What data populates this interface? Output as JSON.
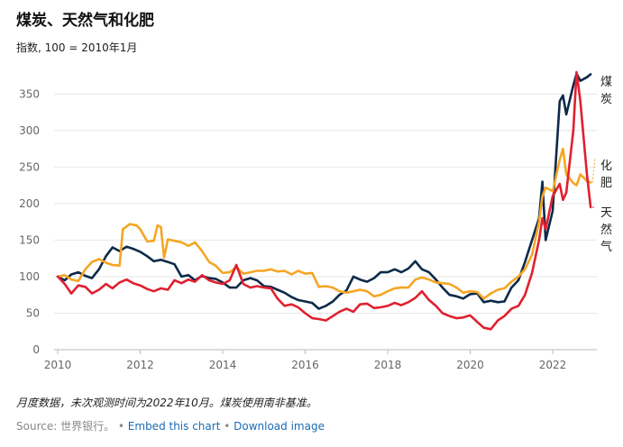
{
  "chart_data": {
    "type": "line",
    "title": "煤炭、天然气和化肥",
    "subtitle": "指数, 100 = 2010年1月",
    "ylim": [
      0,
      380
    ],
    "xlim": [
      2010,
      2022.92
    ],
    "yticks": [
      0,
      50,
      100,
      150,
      200,
      250,
      300,
      350
    ],
    "xticks": [
      2010,
      2012,
      2014,
      2016,
      2018,
      2020,
      2022
    ],
    "grid": true,
    "series": [
      {
        "name": "煤炭",
        "label_lines": [
          "煤",
          "炭"
        ],
        "color": "#0d2a4a",
        "points": [
          [
            2010.0,
            100
          ],
          [
            2010.17,
            95
          ],
          [
            2010.33,
            103
          ],
          [
            2010.5,
            106
          ],
          [
            2010.67,
            101
          ],
          [
            2010.83,
            98
          ],
          [
            2011.0,
            110
          ],
          [
            2011.17,
            128
          ],
          [
            2011.33,
            140
          ],
          [
            2011.5,
            135
          ],
          [
            2011.67,
            141
          ],
          [
            2011.83,
            138
          ],
          [
            2012.0,
            134
          ],
          [
            2012.17,
            128
          ],
          [
            2012.33,
            121
          ],
          [
            2012.5,
            123
          ],
          [
            2012.67,
            120
          ],
          [
            2012.83,
            117
          ],
          [
            2013.0,
            100
          ],
          [
            2013.17,
            102
          ],
          [
            2013.33,
            95
          ],
          [
            2013.5,
            101
          ],
          [
            2013.67,
            98
          ],
          [
            2013.83,
            97
          ],
          [
            2014.0,
            92
          ],
          [
            2014.17,
            85
          ],
          [
            2014.33,
            85
          ],
          [
            2014.5,
            95
          ],
          [
            2014.67,
            98
          ],
          [
            2014.83,
            95
          ],
          [
            2015.0,
            87
          ],
          [
            2015.17,
            86
          ],
          [
            2015.33,
            82
          ],
          [
            2015.5,
            78
          ],
          [
            2015.67,
            72
          ],
          [
            2015.83,
            68
          ],
          [
            2016.0,
            66
          ],
          [
            2016.17,
            64
          ],
          [
            2016.33,
            56
          ],
          [
            2016.5,
            60
          ],
          [
            2016.67,
            66
          ],
          [
            2016.83,
            75
          ],
          [
            2017.0,
            81
          ],
          [
            2017.17,
            100
          ],
          [
            2017.33,
            96
          ],
          [
            2017.5,
            93
          ],
          [
            2017.67,
            98
          ],
          [
            2017.83,
            106
          ],
          [
            2018.0,
            106
          ],
          [
            2018.17,
            110
          ],
          [
            2018.33,
            106
          ],
          [
            2018.5,
            111
          ],
          [
            2018.67,
            121
          ],
          [
            2018.83,
            110
          ],
          [
            2019.0,
            106
          ],
          [
            2019.17,
            96
          ],
          [
            2019.33,
            85
          ],
          [
            2019.5,
            75
          ],
          [
            2019.67,
            73
          ],
          [
            2019.83,
            70
          ],
          [
            2020.0,
            76
          ],
          [
            2020.17,
            77
          ],
          [
            2020.33,
            65
          ],
          [
            2020.5,
            67
          ],
          [
            2020.67,
            65
          ],
          [
            2020.83,
            66
          ],
          [
            2021.0,
            85
          ],
          [
            2021.17,
            95
          ],
          [
            2021.33,
            120
          ],
          [
            2021.5,
            150
          ],
          [
            2021.67,
            180
          ],
          [
            2021.75,
            230
          ],
          [
            2021.83,
            150
          ],
          [
            2022.0,
            190
          ],
          [
            2022.17,
            340
          ],
          [
            2022.25,
            348
          ],
          [
            2022.33,
            322
          ],
          [
            2022.5,
            362
          ],
          [
            2022.58,
            378
          ],
          [
            2022.67,
            368
          ],
          [
            2022.83,
            373
          ],
          [
            2022.92,
            377
          ]
        ]
      },
      {
        "name": "化肥",
        "label_lines": [
          "化",
          "肥"
        ],
        "color": "#f5a623",
        "points": [
          [
            2010.0,
            100
          ],
          [
            2010.17,
            102
          ],
          [
            2010.33,
            96
          ],
          [
            2010.5,
            94
          ],
          [
            2010.67,
            110
          ],
          [
            2010.83,
            120
          ],
          [
            2011.0,
            124
          ],
          [
            2011.17,
            119
          ],
          [
            2011.33,
            116
          ],
          [
            2011.5,
            115
          ],
          [
            2011.58,
            165
          ],
          [
            2011.75,
            172
          ],
          [
            2011.92,
            170
          ],
          [
            2012.0,
            165
          ],
          [
            2012.17,
            148
          ],
          [
            2012.33,
            149
          ],
          [
            2012.42,
            170
          ],
          [
            2012.5,
            168
          ],
          [
            2012.58,
            126
          ],
          [
            2012.67,
            151
          ],
          [
            2012.83,
            149
          ],
          [
            2013.0,
            147
          ],
          [
            2013.17,
            142
          ],
          [
            2013.33,
            147
          ],
          [
            2013.5,
            135
          ],
          [
            2013.67,
            120
          ],
          [
            2013.83,
            115
          ],
          [
            2014.0,
            105
          ],
          [
            2014.17,
            106
          ],
          [
            2014.33,
            113
          ],
          [
            2014.5,
            104
          ],
          [
            2014.67,
            106
          ],
          [
            2014.83,
            108
          ],
          [
            2015.0,
            108
          ],
          [
            2015.17,
            110
          ],
          [
            2015.33,
            107
          ],
          [
            2015.5,
            108
          ],
          [
            2015.67,
            103
          ],
          [
            2015.83,
            108
          ],
          [
            2016.0,
            104
          ],
          [
            2016.17,
            105
          ],
          [
            2016.33,
            86
          ],
          [
            2016.5,
            87
          ],
          [
            2016.67,
            85
          ],
          [
            2016.83,
            80
          ],
          [
            2017.0,
            78
          ],
          [
            2017.17,
            80
          ],
          [
            2017.33,
            82
          ],
          [
            2017.5,
            80
          ],
          [
            2017.67,
            73
          ],
          [
            2017.83,
            75
          ],
          [
            2018.0,
            80
          ],
          [
            2018.17,
            84
          ],
          [
            2018.33,
            85
          ],
          [
            2018.5,
            85
          ],
          [
            2018.67,
            96
          ],
          [
            2018.83,
            99
          ],
          [
            2019.0,
            96
          ],
          [
            2019.17,
            92
          ],
          [
            2019.33,
            91
          ],
          [
            2019.5,
            90
          ],
          [
            2019.67,
            85
          ],
          [
            2019.83,
            78
          ],
          [
            2020.0,
            80
          ],
          [
            2020.17,
            79
          ],
          [
            2020.33,
            70
          ],
          [
            2020.5,
            77
          ],
          [
            2020.67,
            82
          ],
          [
            2020.83,
            84
          ],
          [
            2021.0,
            93
          ],
          [
            2021.17,
            100
          ],
          [
            2021.33,
            110
          ],
          [
            2021.5,
            130
          ],
          [
            2021.67,
            175
          ],
          [
            2021.75,
            210
          ],
          [
            2021.83,
            222
          ],
          [
            2022.0,
            217
          ],
          [
            2022.17,
            260
          ],
          [
            2022.25,
            275
          ],
          [
            2022.33,
            240
          ],
          [
            2022.5,
            228
          ],
          [
            2022.58,
            225
          ],
          [
            2022.67,
            240
          ],
          [
            2022.83,
            231
          ],
          [
            2022.92,
            229
          ]
        ]
      },
      {
        "name": "天然气",
        "label_lines": [
          "天",
          "然",
          "气"
        ],
        "color": "#e0202f",
        "points": [
          [
            2010.0,
            100
          ],
          [
            2010.17,
            90
          ],
          [
            2010.33,
            77
          ],
          [
            2010.5,
            88
          ],
          [
            2010.67,
            86
          ],
          [
            2010.83,
            77
          ],
          [
            2011.0,
            82
          ],
          [
            2011.17,
            90
          ],
          [
            2011.33,
            84
          ],
          [
            2011.5,
            92
          ],
          [
            2011.67,
            96
          ],
          [
            2011.83,
            91
          ],
          [
            2012.0,
            88
          ],
          [
            2012.17,
            83
          ],
          [
            2012.33,
            80
          ],
          [
            2012.5,
            84
          ],
          [
            2012.67,
            82
          ],
          [
            2012.83,
            95
          ],
          [
            2013.0,
            91
          ],
          [
            2013.17,
            96
          ],
          [
            2013.33,
            93
          ],
          [
            2013.5,
            102
          ],
          [
            2013.67,
            95
          ],
          [
            2013.83,
            92
          ],
          [
            2014.0,
            90
          ],
          [
            2014.17,
            95
          ],
          [
            2014.33,
            116
          ],
          [
            2014.5,
            90
          ],
          [
            2014.67,
            85
          ],
          [
            2014.83,
            87
          ],
          [
            2015.0,
            85
          ],
          [
            2015.17,
            84
          ],
          [
            2015.33,
            70
          ],
          [
            2015.5,
            60
          ],
          [
            2015.67,
            62
          ],
          [
            2015.83,
            58
          ],
          [
            2016.0,
            50
          ],
          [
            2016.17,
            43
          ],
          [
            2016.33,
            42
          ],
          [
            2016.5,
            40
          ],
          [
            2016.67,
            46
          ],
          [
            2016.83,
            52
          ],
          [
            2017.0,
            56
          ],
          [
            2017.17,
            52
          ],
          [
            2017.33,
            62
          ],
          [
            2017.5,
            63
          ],
          [
            2017.67,
            57
          ],
          [
            2017.83,
            58
          ],
          [
            2018.0,
            60
          ],
          [
            2018.17,
            64
          ],
          [
            2018.33,
            61
          ],
          [
            2018.5,
            65
          ],
          [
            2018.67,
            71
          ],
          [
            2018.83,
            80
          ],
          [
            2019.0,
            68
          ],
          [
            2019.17,
            60
          ],
          [
            2019.33,
            50
          ],
          [
            2019.5,
            46
          ],
          [
            2019.67,
            43
          ],
          [
            2019.83,
            44
          ],
          [
            2020.0,
            47
          ],
          [
            2020.17,
            38
          ],
          [
            2020.33,
            30
          ],
          [
            2020.5,
            28
          ],
          [
            2020.67,
            40
          ],
          [
            2020.83,
            46
          ],
          [
            2021.0,
            56
          ],
          [
            2021.17,
            60
          ],
          [
            2021.33,
            75
          ],
          [
            2021.5,
            105
          ],
          [
            2021.67,
            150
          ],
          [
            2021.75,
            180
          ],
          [
            2021.83,
            165
          ],
          [
            2022.0,
            210
          ],
          [
            2022.17,
            227
          ],
          [
            2022.25,
            205
          ],
          [
            2022.33,
            215
          ],
          [
            2022.5,
            300
          ],
          [
            2022.58,
            380
          ],
          [
            2022.67,
            340
          ],
          [
            2022.83,
            240
          ],
          [
            2022.92,
            195
          ]
        ]
      }
    ]
  },
  "note": "月度数据，未次观测时间为2022年10月。煤炭使用南非基准。",
  "source": {
    "prefix": "Source: 世界银行。",
    "bullet": " • ",
    "embed_label": "Embed this chart",
    "download_label": "Download image"
  }
}
